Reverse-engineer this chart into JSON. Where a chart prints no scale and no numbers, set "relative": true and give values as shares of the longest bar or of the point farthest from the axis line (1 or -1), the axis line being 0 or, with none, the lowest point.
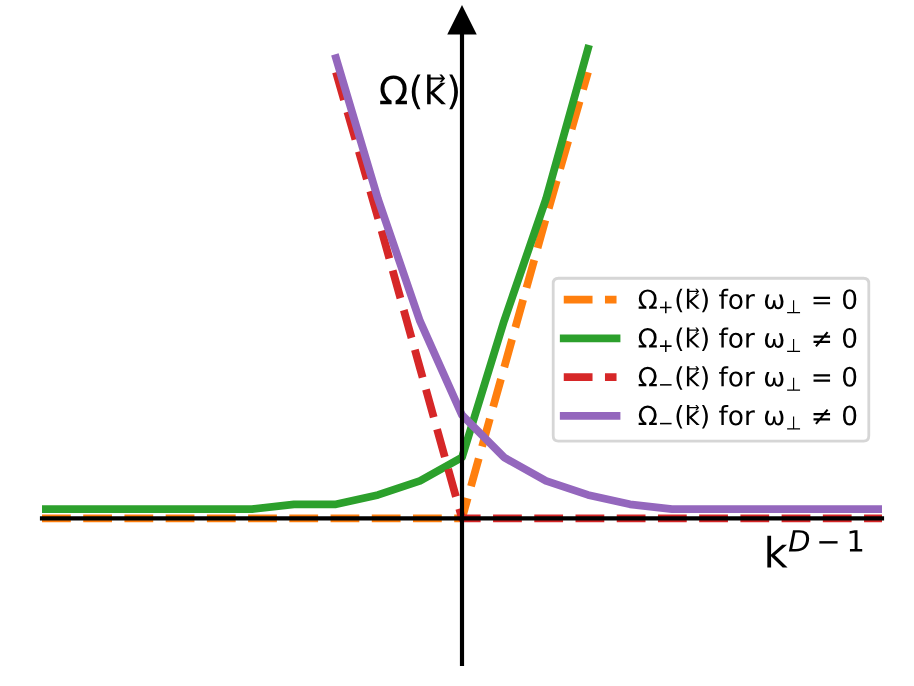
{
  "chart_data": {
    "type": "line",
    "relative": true,
    "grid": false,
    "legend": "right",
    "marker": "none",
    "xlabel": "k$^{D−1}$",
    "ylabel": "Ω(k⃗)",
    "categories": [
      null,
      null,
      null,
      null,
      null,
      null,
      null,
      null,
      null,
      null,
      null,
      null,
      null,
      null,
      null,
      null,
      null,
      null,
      null,
      null,
      null
    ],
    "series": [
      {
        "name": "Ω$_{+}$(k⃗) for ω$_{⊥}$ = 0",
        "color": "#ff7f0e",
        "line_style": "dashed",
        "values": [
          0,
          0,
          0,
          0,
          0,
          0,
          0,
          0,
          0,
          0,
          0,
          0.32,
          0.64,
          0.95,
          null,
          null,
          null,
          null,
          null,
          null,
          null
        ]
      },
      {
        "name": "Ω$_{+}$(k⃗) for ω$_{⊥}$ ≠ 0",
        "color": "#2ca02c",
        "line_style": "solid",
        "values": [
          0.02,
          0.02,
          0.02,
          0.02,
          0.02,
          0.02,
          0.03,
          0.03,
          0.05,
          0.08,
          0.13,
          0.42,
          0.68,
          1,
          null,
          null,
          null,
          null,
          null,
          null,
          null
        ]
      },
      {
        "name": "Ω$_{−}$(k⃗) for ω$_{⊥}$ = 0",
        "color": "#d62728",
        "line_style": "dashed",
        "values": [
          null,
          null,
          null,
          null,
          null,
          null,
          null,
          0.95,
          0.64,
          0.32,
          0,
          0,
          0,
          0,
          0,
          0,
          0,
          0,
          0,
          0,
          0
        ]
      },
      {
        "name": "Ω$_{−}$(k⃗) for ω$_{⊥}$ ≠ 0",
        "color": "#9467bd",
        "line_style": "solid",
        "values": [
          null,
          null,
          null,
          null,
          null,
          null,
          null,
          0.98,
          0.68,
          0.42,
          0.22,
          0.13,
          0.08,
          0.05,
          0.03,
          0.02,
          0.02,
          0.02,
          0.02,
          0.02,
          0.02
        ]
      }
    ]
  }
}
